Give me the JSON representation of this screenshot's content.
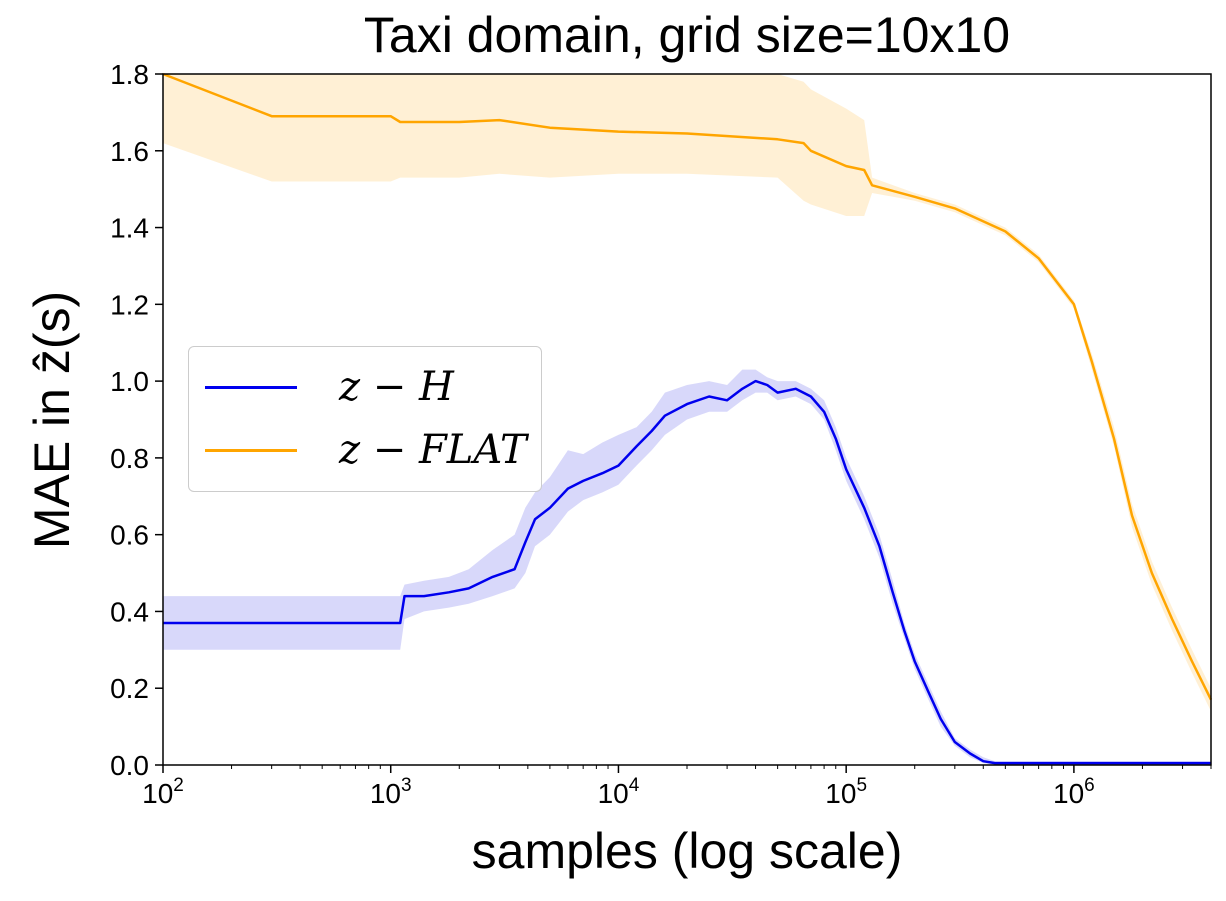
{
  "chart_data": {
    "type": "line",
    "title": "Taxi domain, grid size=10x10",
    "xlabel": "samples (log scale)",
    "ylabel": "MAE in ẑ(s)",
    "xscale": "log",
    "xlim": [
      100,
      4000000
    ],
    "ylim": [
      0.0,
      1.8
    ],
    "yticks": [
      "0.0",
      "0.2",
      "0.4",
      "0.6",
      "0.8",
      "1.0",
      "1.2",
      "1.4",
      "1.6",
      "1.8"
    ],
    "xticks": [
      {
        "base": "10",
        "exp": "2"
      },
      {
        "base": "10",
        "exp": "3"
      },
      {
        "base": "10",
        "exp": "4"
      },
      {
        "base": "10",
        "exp": "5"
      },
      {
        "base": "10",
        "exp": "6"
      }
    ],
    "grid": false,
    "legend_position": "center-left",
    "series": [
      {
        "name": "z − H",
        "color": "#0000ee",
        "band_color": "#b8b8f5",
        "x": [
          100,
          500,
          1000,
          1100,
          1150,
          1400,
          1800,
          2200,
          2800,
          3500,
          3900,
          4300,
          5000,
          6000,
          7000,
          8500,
          10000,
          12000,
          14000,
          16000,
          20000,
          25000,
          30000,
          35000,
          40000,
          45000,
          50000,
          60000,
          70000,
          80000,
          90000,
          100000,
          120000,
          140000,
          160000,
          180000,
          200000,
          230000,
          260000,
          300000,
          350000,
          400000,
          450000,
          500000,
          1000000,
          4000000
        ],
        "y": [
          0.37,
          0.37,
          0.37,
          0.37,
          0.44,
          0.44,
          0.45,
          0.46,
          0.49,
          0.51,
          0.58,
          0.64,
          0.67,
          0.72,
          0.74,
          0.76,
          0.78,
          0.83,
          0.87,
          0.91,
          0.94,
          0.96,
          0.95,
          0.98,
          1.0,
          0.99,
          0.97,
          0.98,
          0.96,
          0.92,
          0.85,
          0.77,
          0.67,
          0.57,
          0.45,
          0.35,
          0.27,
          0.19,
          0.12,
          0.06,
          0.03,
          0.01,
          0.005,
          0.005,
          0.005,
          0.005
        ],
        "lower": [
          0.3,
          0.3,
          0.3,
          0.3,
          0.38,
          0.4,
          0.41,
          0.42,
          0.44,
          0.46,
          0.5,
          0.57,
          0.6,
          0.66,
          0.69,
          0.71,
          0.73,
          0.78,
          0.82,
          0.86,
          0.9,
          0.92,
          0.92,
          0.95,
          0.97,
          0.97,
          0.95,
          0.96,
          0.94,
          0.9,
          0.82,
          0.74,
          0.64,
          0.54,
          0.42,
          0.33,
          0.25,
          0.17,
          0.1,
          0.05,
          0.02,
          0.005,
          0.0,
          0.0,
          0.0,
          0.0
        ],
        "upper": [
          0.44,
          0.44,
          0.44,
          0.44,
          0.47,
          0.48,
          0.49,
          0.51,
          0.56,
          0.6,
          0.67,
          0.71,
          0.75,
          0.82,
          0.81,
          0.84,
          0.86,
          0.88,
          0.92,
          0.97,
          0.99,
          1.0,
          0.99,
          1.03,
          1.03,
          1.01,
          1.0,
          1.0,
          0.98,
          0.95,
          0.88,
          0.8,
          0.7,
          0.6,
          0.48,
          0.37,
          0.29,
          0.21,
          0.14,
          0.07,
          0.04,
          0.02,
          0.01,
          0.01,
          0.01,
          0.01
        ]
      },
      {
        "name": "z − FLAT",
        "color": "#ffa500",
        "band_color": "#ffe3b3",
        "x": [
          100,
          300,
          1000,
          1100,
          2000,
          3000,
          5000,
          10000,
          20000,
          50000,
          65000,
          70000,
          100000,
          120000,
          130000,
          200000,
          300000,
          500000,
          700000,
          1000000,
          1200000,
          1500000,
          1800000,
          2200000,
          2700000,
          3300000,
          4000000
        ],
        "y": [
          1.8,
          1.69,
          1.69,
          1.675,
          1.675,
          1.68,
          1.66,
          1.65,
          1.645,
          1.63,
          1.62,
          1.6,
          1.56,
          1.55,
          1.51,
          1.48,
          1.45,
          1.39,
          1.32,
          1.2,
          1.05,
          0.85,
          0.65,
          0.5,
          0.38,
          0.27,
          0.17
        ],
        "lower": [
          1.62,
          1.52,
          1.52,
          1.53,
          1.53,
          1.54,
          1.53,
          1.54,
          1.54,
          1.53,
          1.47,
          1.46,
          1.43,
          1.43,
          1.49,
          1.47,
          1.44,
          1.38,
          1.31,
          1.19,
          1.03,
          0.83,
          0.62,
          0.47,
          0.35,
          0.24,
          0.14
        ],
        "upper": [
          1.8,
          1.8,
          1.8,
          1.8,
          1.8,
          1.8,
          1.8,
          1.8,
          1.8,
          1.8,
          1.78,
          1.76,
          1.71,
          1.68,
          1.53,
          1.49,
          1.46,
          1.4,
          1.33,
          1.21,
          1.07,
          0.88,
          0.68,
          0.53,
          0.41,
          0.3,
          0.2
        ]
      }
    ]
  }
}
